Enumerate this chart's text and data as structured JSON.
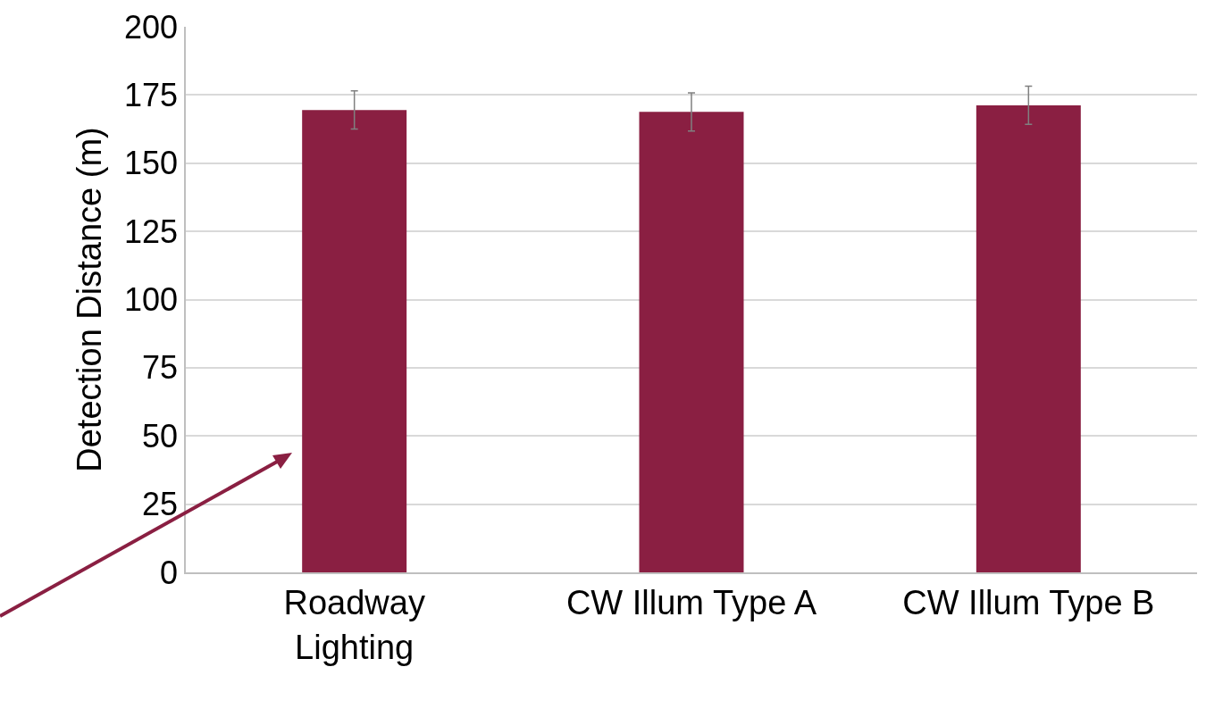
{
  "chart_data": {
    "type": "bar",
    "ylabel": "Detection Distance (m)",
    "categories": [
      "Roadway Lighting",
      "CW Illum Type A",
      "CW Illum Type B"
    ],
    "values": [
      169.5,
      168.8,
      171.2
    ],
    "errors": [
      7,
      7,
      7
    ],
    "color": "#8a1f42",
    "ylim": [
      0,
      200
    ],
    "yticks": [
      0,
      25,
      50,
      75,
      100,
      125,
      150,
      175,
      200
    ],
    "grid": "y"
  }
}
